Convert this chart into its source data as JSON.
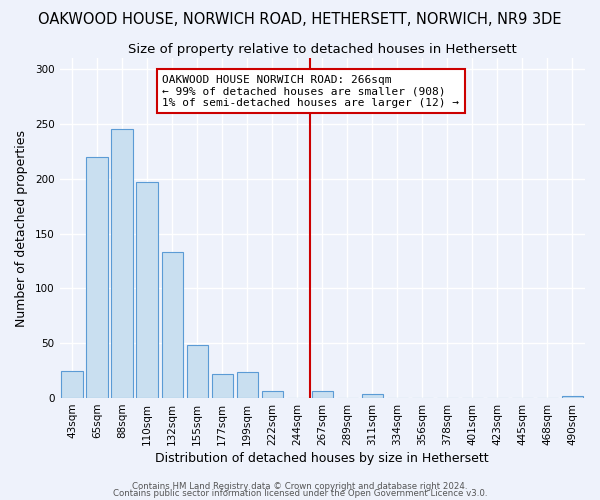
{
  "title": "OAKWOOD HOUSE, NORWICH ROAD, HETHERSETT, NORWICH, NR9 3DE",
  "subtitle": "Size of property relative to detached houses in Hethersett",
  "xlabel": "Distribution of detached houses by size in Hethersett",
  "ylabel": "Number of detached properties",
  "footer_line1": "Contains HM Land Registry data © Crown copyright and database right 2024.",
  "footer_line2": "Contains public sector information licensed under the Open Government Licence v3.0.",
  "bar_labels": [
    "43sqm",
    "65sqm",
    "88sqm",
    "110sqm",
    "132sqm",
    "155sqm",
    "177sqm",
    "199sqm",
    "222sqm",
    "244sqm",
    "267sqm",
    "289sqm",
    "311sqm",
    "334sqm",
    "356sqm",
    "378sqm",
    "401sqm",
    "423sqm",
    "445sqm",
    "468sqm",
    "490sqm"
  ],
  "bar_values": [
    25,
    220,
    245,
    197,
    133,
    48,
    22,
    24,
    6,
    0,
    6,
    0,
    4,
    0,
    0,
    0,
    0,
    0,
    0,
    0,
    2
  ],
  "bar_color": "#c9dff0",
  "bar_edge_color": "#5b9bd5",
  "annotation_line_x_label": "267sqm",
  "annotation_line_color": "#cc0000",
  "annotation_box_text": "OAKWOOD HOUSE NORWICH ROAD: 266sqm\n← 99% of detached houses are smaller (908)\n1% of semi-detached houses are larger (12) →",
  "ylim": [
    0,
    310
  ],
  "yticks": [
    0,
    50,
    100,
    150,
    200,
    250,
    300
  ],
  "background_color": "#eef2fb",
  "grid_color": "#ffffff",
  "title_fontsize": 10.5,
  "subtitle_fontsize": 9.5,
  "xlabel_fontsize": 9,
  "ylabel_fontsize": 9,
  "tick_fontsize": 7.5,
  "footer_fontsize": 6.2
}
